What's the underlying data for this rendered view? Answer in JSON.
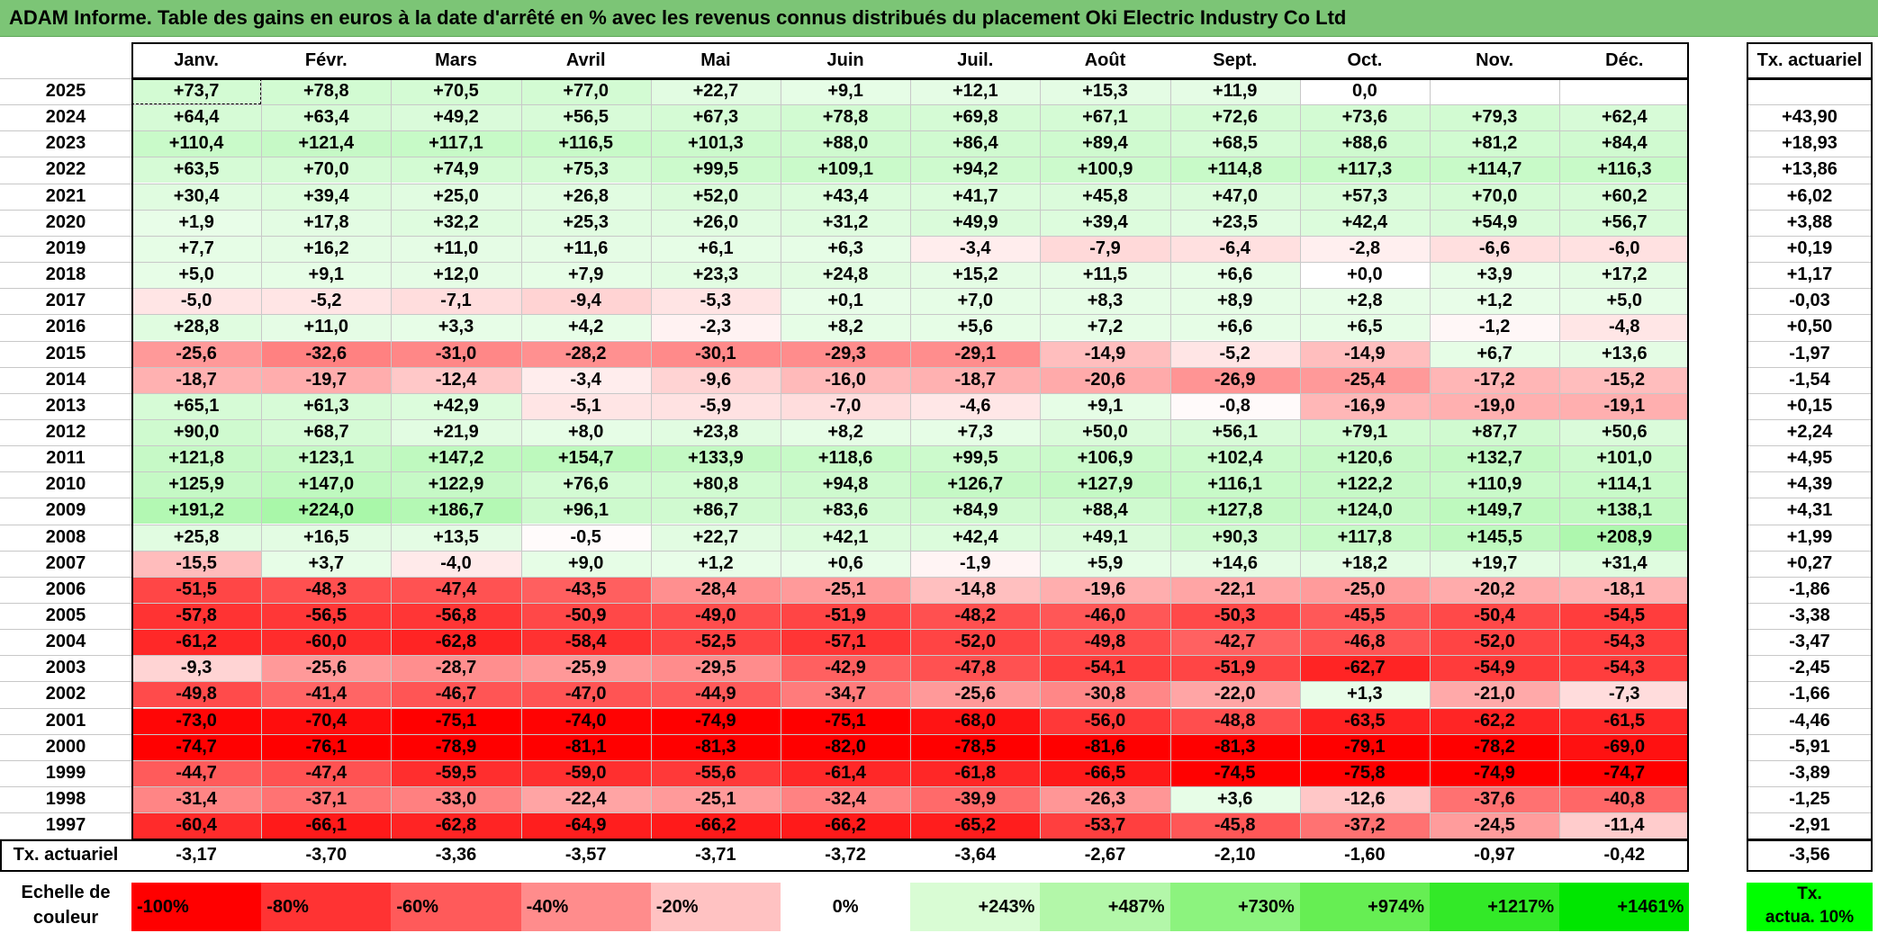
{
  "title": "ADAM Informe. Table des gains en euros à la date d'arrêté en % avec les revenus connus distribués du placement Oki Electric Industry Co Ltd",
  "months": [
    "Janv.",
    "Févr.",
    "Mars",
    "Avril",
    "Mai",
    "Juin",
    "Juil.",
    "Août",
    "Sept.",
    "Oct.",
    "Nov.",
    "Déc."
  ],
  "rate_header": "Tx. actuariel",
  "rows": [
    {
      "year": "2025",
      "values": [
        "+73,7",
        "+78,8",
        "+70,5",
        "+77,0",
        "+22,7",
        "+9,1",
        "+12,1",
        "+15,3",
        "+11,9",
        "0,0",
        "",
        ""
      ],
      "rate": ""
    },
    {
      "year": "2024",
      "values": [
        "+64,4",
        "+63,4",
        "+49,2",
        "+56,5",
        "+67,3",
        "+78,8",
        "+69,8",
        "+67,1",
        "+72,6",
        "+73,6",
        "+79,3",
        "+62,4"
      ],
      "rate": "+43,90"
    },
    {
      "year": "2023",
      "values": [
        "+110,4",
        "+121,4",
        "+117,1",
        "+116,5",
        "+101,3",
        "+88,0",
        "+86,4",
        "+89,4",
        "+68,5",
        "+88,6",
        "+81,2",
        "+84,4"
      ],
      "rate": "+18,93"
    },
    {
      "year": "2022",
      "values": [
        "+63,5",
        "+70,0",
        "+74,9",
        "+75,3",
        "+99,5",
        "+109,1",
        "+94,2",
        "+100,9",
        "+114,8",
        "+117,3",
        "+114,7",
        "+116,3"
      ],
      "rate": "+13,86"
    },
    {
      "year": "2021",
      "values": [
        "+30,4",
        "+39,4",
        "+25,0",
        "+26,8",
        "+52,0",
        "+43,4",
        "+41,7",
        "+45,8",
        "+47,0",
        "+57,3",
        "+70,0",
        "+60,2"
      ],
      "rate": "+6,02"
    },
    {
      "year": "2020",
      "values": [
        "+1,9",
        "+17,8",
        "+32,2",
        "+25,3",
        "+26,0",
        "+31,2",
        "+49,9",
        "+39,4",
        "+23,5",
        "+42,4",
        "+54,9",
        "+56,7"
      ],
      "rate": "+3,88"
    },
    {
      "year": "2019",
      "values": [
        "+7,7",
        "+16,2",
        "+11,0",
        "+11,6",
        "+6,1",
        "+6,3",
        "-3,4",
        "-7,9",
        "-6,4",
        "-2,8",
        "-6,6",
        "-6,0"
      ],
      "rate": "+0,19"
    },
    {
      "year": "2018",
      "values": [
        "+5,0",
        "+9,1",
        "+12,0",
        "+7,9",
        "+23,3",
        "+24,8",
        "+15,2",
        "+11,5",
        "+6,6",
        "+0,0",
        "+3,9",
        "+17,2"
      ],
      "rate": "+1,17"
    },
    {
      "year": "2017",
      "values": [
        "-5,0",
        "-5,2",
        "-7,1",
        "-9,4",
        "-5,3",
        "+0,1",
        "+7,0",
        "+8,3",
        "+8,9",
        "+2,8",
        "+1,2",
        "+5,0"
      ],
      "rate": "-0,03"
    },
    {
      "year": "2016",
      "values": [
        "+28,8",
        "+11,0",
        "+3,3",
        "+4,2",
        "-2,3",
        "+8,2",
        "+5,6",
        "+7,2",
        "+6,6",
        "+6,5",
        "-1,2",
        "-4,8"
      ],
      "rate": "+0,50"
    },
    {
      "year": "2015",
      "values": [
        "-25,6",
        "-32,6",
        "-31,0",
        "-28,2",
        "-30,1",
        "-29,3",
        "-29,1",
        "-14,9",
        "-5,2",
        "-14,9",
        "+6,7",
        "+13,6"
      ],
      "rate": "-1,97"
    },
    {
      "year": "2014",
      "values": [
        "-18,7",
        "-19,7",
        "-12,4",
        "-3,4",
        "-9,6",
        "-16,0",
        "-18,7",
        "-20,6",
        "-26,9",
        "-25,4",
        "-17,2",
        "-15,2"
      ],
      "rate": "-1,54"
    },
    {
      "year": "2013",
      "values": [
        "+65,1",
        "+61,3",
        "+42,9",
        "-5,1",
        "-5,9",
        "-7,0",
        "-4,6",
        "+9,1",
        "-0,8",
        "-16,9",
        "-19,0",
        "-19,1"
      ],
      "rate": "+0,15"
    },
    {
      "year": "2012",
      "values": [
        "+90,0",
        "+68,7",
        "+21,9",
        "+8,0",
        "+23,8",
        "+8,2",
        "+7,3",
        "+50,0",
        "+56,1",
        "+79,1",
        "+87,7",
        "+50,6"
      ],
      "rate": "+2,24"
    },
    {
      "year": "2011",
      "values": [
        "+121,8",
        "+123,1",
        "+147,2",
        "+154,7",
        "+133,9",
        "+118,6",
        "+99,5",
        "+106,9",
        "+102,4",
        "+120,6",
        "+132,7",
        "+101,0"
      ],
      "rate": "+4,95"
    },
    {
      "year": "2010",
      "values": [
        "+125,9",
        "+147,0",
        "+122,9",
        "+76,6",
        "+80,8",
        "+94,8",
        "+126,7",
        "+127,9",
        "+116,1",
        "+122,2",
        "+110,9",
        "+114,1"
      ],
      "rate": "+4,39"
    },
    {
      "year": "2009",
      "values": [
        "+191,2",
        "+224,0",
        "+186,7",
        "+96,1",
        "+86,7",
        "+83,6",
        "+84,9",
        "+88,4",
        "+127,8",
        "+124,0",
        "+149,7",
        "+138,1"
      ],
      "rate": "+4,31"
    },
    {
      "year": "2008",
      "values": [
        "+25,8",
        "+16,5",
        "+13,5",
        "-0,5",
        "+22,7",
        "+42,1",
        "+42,4",
        "+49,1",
        "+90,3",
        "+117,8",
        "+145,5",
        "+208,9"
      ],
      "rate": "+1,99"
    },
    {
      "year": "2007",
      "values": [
        "-15,5",
        "+3,7",
        "-4,0",
        "+9,0",
        "+1,2",
        "+0,6",
        "-1,9",
        "+5,9",
        "+14,6",
        "+18,2",
        "+19,7",
        "+31,4"
      ],
      "rate": "+0,27"
    },
    {
      "year": "2006",
      "values": [
        "-51,5",
        "-48,3",
        "-47,4",
        "-43,5",
        "-28,4",
        "-25,1",
        "-14,8",
        "-19,6",
        "-22,1",
        "-25,0",
        "-20,2",
        "-18,1"
      ],
      "rate": "-1,86"
    },
    {
      "year": "2005",
      "values": [
        "-57,8",
        "-56,5",
        "-56,8",
        "-50,9",
        "-49,0",
        "-51,9",
        "-48,2",
        "-46,0",
        "-50,3",
        "-45,5",
        "-50,4",
        "-54,5"
      ],
      "rate": "-3,38"
    },
    {
      "year": "2004",
      "values": [
        "-61,2",
        "-60,0",
        "-62,8",
        "-58,4",
        "-52,5",
        "-57,1",
        "-52,0",
        "-49,8",
        "-42,7",
        "-46,8",
        "-52,0",
        "-54,3"
      ],
      "rate": "-3,47"
    },
    {
      "year": "2003",
      "values": [
        "-9,3",
        "-25,6",
        "-28,7",
        "-25,9",
        "-29,5",
        "-42,9",
        "-47,8",
        "-54,1",
        "-51,9",
        "-62,7",
        "-54,9",
        "-54,3"
      ],
      "rate": "-2,45"
    },
    {
      "year": "2002",
      "values": [
        "-49,8",
        "-41,4",
        "-46,7",
        "-47,0",
        "-44,9",
        "-34,7",
        "-25,6",
        "-30,8",
        "-22,0",
        "+1,3",
        "-21,0",
        "-7,3"
      ],
      "rate": "-1,66"
    },
    {
      "year": "2001",
      "values": [
        "-73,0",
        "-70,4",
        "-75,1",
        "-74,0",
        "-74,9",
        "-75,1",
        "-68,0",
        "-56,0",
        "-48,8",
        "-63,5",
        "-62,2",
        "-61,5"
      ],
      "rate": "-4,46"
    },
    {
      "year": "2000",
      "values": [
        "-74,7",
        "-76,1",
        "-78,9",
        "-81,1",
        "-81,3",
        "-82,0",
        "-78,5",
        "-81,6",
        "-81,3",
        "-79,1",
        "-78,2",
        "-69,0"
      ],
      "rate": "-5,91"
    },
    {
      "year": "1999",
      "values": [
        "-44,7",
        "-47,4",
        "-59,5",
        "-59,0",
        "-55,6",
        "-61,4",
        "-61,8",
        "-66,5",
        "-74,5",
        "-75,8",
        "-74,9",
        "-74,7"
      ],
      "rate": "-3,89"
    },
    {
      "year": "1998",
      "values": [
        "-31,4",
        "-37,1",
        "-33,0",
        "-22,4",
        "-25,1",
        "-32,4",
        "-39,9",
        "-26,3",
        "+3,6",
        "-12,6",
        "-37,6",
        "-40,8"
      ],
      "rate": "-1,25"
    },
    {
      "year": "1997",
      "values": [
        "-60,4",
        "-66,1",
        "-62,8",
        "-64,9",
        "-66,2",
        "-66,2",
        "-65,2",
        "-53,7",
        "-45,8",
        "-37,2",
        "-24,5",
        "-11,4"
      ],
      "rate": "-2,91"
    }
  ],
  "footer": {
    "label": "Tx. actuariel",
    "values": [
      "-3,17",
      "-3,70",
      "-3,36",
      "-3,57",
      "-3,71",
      "-3,72",
      "-3,64",
      "-2,67",
      "-2,10",
      "-1,60",
      "-0,97",
      "-0,42"
    ],
    "rate": "-3,56"
  },
  "scale": {
    "label_line1": "Echelle de",
    "label_line2": "couleur",
    "items": [
      {
        "text": "-100%",
        "color": "#ff0000",
        "align": "left"
      },
      {
        "text": "-80%",
        "color": "#ff3333",
        "align": "left"
      },
      {
        "text": "-60%",
        "color": "#ff5a5a",
        "align": "left"
      },
      {
        "text": "-40%",
        "color": "#ff8c8c",
        "align": "left"
      },
      {
        "text": "-20%",
        "color": "#ffc2c2",
        "align": "left"
      },
      {
        "text": "0%",
        "color": "#ffffff",
        "align": "center"
      },
      {
        "text": "+243%",
        "color": "#d9fcd4",
        "align": "right"
      },
      {
        "text": "+487%",
        "color": "#b3f7a9",
        "align": "right"
      },
      {
        "text": "+730%",
        "color": "#8cf37e",
        "align": "right"
      },
      {
        "text": "+974%",
        "color": "#66ee53",
        "align": "right"
      },
      {
        "text": "+1217%",
        "color": "#33e928",
        "align": "right"
      },
      {
        "text": "+1461%",
        "color": "#00e600",
        "align": "right"
      }
    ],
    "right_line1": "Tx.",
    "right_line2": "actua. 10%",
    "right_color": "#00ff00"
  },
  "colors": {
    "title_bg": "#7cc576",
    "negative": "#ff0000",
    "positive": "#00e600"
  }
}
